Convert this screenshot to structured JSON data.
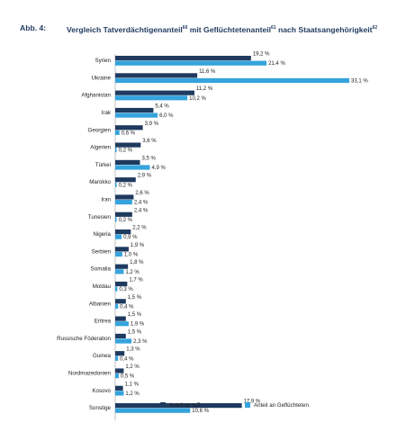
{
  "caption": {
    "label": "Abb. 4:",
    "title_part1": "Vergleich Tatverdächtigenanteil",
    "fn1": "60",
    "title_part2": " mit Geflüchtetenanteil",
    "fn2": "61",
    "title_part3": " nach Staatsangehö­rigkeit",
    "fn3": "62"
  },
  "chart_data": {
    "type": "bar",
    "orientation": "horizontal",
    "categories": [
      "Syrien",
      "Ukraine",
      "Afghanistan",
      "Irak",
      "Georgien",
      "Algerien",
      "Türkei",
      "Marokko",
      "Iran",
      "Tunesien",
      "Nigeria",
      "Serbien",
      "Somalia",
      "Moldau",
      "Albanien",
      "Eritrea",
      "Russische Föderation",
      "Guinea",
      "Nordmazedonien",
      "Kosovo",
      "Sonstige"
    ],
    "series": [
      {
        "name": "Anteil an tvZ",
        "color": "#1f3a5f",
        "values": [
          19.2,
          11.6,
          11.2,
          5.4,
          3.9,
          3.6,
          3.5,
          2.9,
          2.6,
          2.4,
          2.2,
          1.9,
          1.8,
          1.7,
          1.5,
          1.5,
          1.5,
          1.3,
          1.2,
          1.1,
          17.9
        ],
        "labels": [
          "19,2 %",
          "11,6 %",
          "11,2 %",
          "5,4 %",
          "3,9 %",
          "3,6 %",
          "3,5 %",
          "2,9 %",
          "2,6 %",
          "2,4 %",
          "2,2 %",
          "1,9 %",
          "1,8 %",
          "1,7 %",
          "1,5 %",
          "1,5 %",
          "1,5 %",
          "1,3 %",
          "1,2 %",
          "1,1 %",
          "17,9 %"
        ]
      },
      {
        "name": "Anteil an Geflüchteten",
        "color": "#35a3dc",
        "values": [
          21.4,
          33.1,
          10.2,
          6.0,
          0.6,
          0.2,
          4.9,
          0.2,
          2.4,
          0.2,
          0.9,
          1.0,
          1.2,
          0.3,
          0.4,
          1.9,
          2.3,
          0.4,
          0.5,
          1.2,
          10.6
        ],
        "labels": [
          "21,4 %",
          "33,1 %",
          "10,2 %",
          "6,0 %",
          "0,6 %",
          "0,2 %",
          "4,9 %",
          "0,2 %",
          "2,4 %",
          "0,2 %",
          "0,9 %",
          "1,0 %",
          "1,2 %",
          "0,3 %",
          "0,4 %",
          "1,9 %",
          "2,3 %",
          "0,4 %",
          "0,5 %",
          "1,2 %",
          "10,6 %"
        ]
      }
    ],
    "xlim": [
      0,
      34
    ],
    "grid": false,
    "legend": "bottom"
  }
}
